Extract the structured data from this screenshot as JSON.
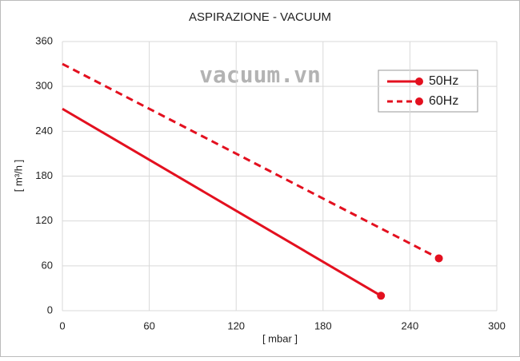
{
  "chart_data": {
    "type": "line",
    "title": "ASPIRAZIONE - VACUUM",
    "xlabel": "[ mbar ]",
    "ylabel": "[ m³/h ]",
    "annotation": "vacuum.vn",
    "xlim": [
      0,
      300
    ],
    "xticks": [
      0,
      60,
      120,
      180,
      240,
      300
    ],
    "ylim": [
      0,
      360
    ],
    "yticks": [
      0,
      60,
      120,
      180,
      240,
      300,
      360
    ],
    "grid": true,
    "legend": "upper right",
    "series": [
      {
        "name": "50Hz",
        "color": "#e3101f",
        "style": "solid",
        "x": [
          0,
          220
        ],
        "values": [
          270,
          20
        ]
      },
      {
        "name": "60Hz",
        "color": "#e3101f",
        "style": "dashed",
        "x": [
          0,
          260
        ],
        "values": [
          330,
          70
        ]
      }
    ]
  }
}
